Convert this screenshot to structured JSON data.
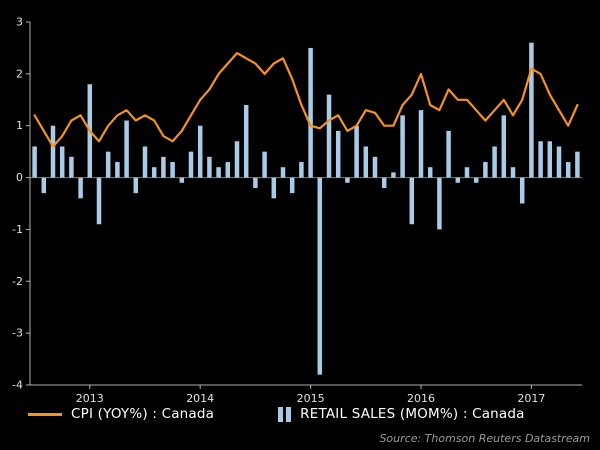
{
  "source_note": "Source: Thomson Reuters Datastream",
  "colors": {
    "background": "#000000",
    "cpi_line": "#F6921E",
    "retail_bar": "#A8CBE8",
    "axis": "#b0b0b0",
    "tick_label": "#e0e0e0",
    "zero_line": "#7a7a7a",
    "legend_text": "#ffffff",
    "source_text": "#9b9b9b"
  },
  "chart_data": {
    "type": "bar",
    "title": "",
    "xlabel": "",
    "ylabel": "",
    "ylim": [
      -4,
      3
    ],
    "yticks": [
      3,
      2,
      1,
      0,
      -1,
      -2,
      -3,
      -4
    ],
    "xticks": [
      "2013",
      "2014",
      "2015",
      "2016",
      "2017"
    ],
    "grid": false,
    "legend_position": "bottom",
    "x": [
      "2012-07",
      "2012-08",
      "2012-09",
      "2012-10",
      "2012-11",
      "2012-12",
      "2013-01",
      "2013-02",
      "2013-03",
      "2013-04",
      "2013-05",
      "2013-06",
      "2013-07",
      "2013-08",
      "2013-09",
      "2013-10",
      "2013-11",
      "2013-12",
      "2014-01",
      "2014-02",
      "2014-03",
      "2014-04",
      "2014-05",
      "2014-06",
      "2014-07",
      "2014-08",
      "2014-09",
      "2014-10",
      "2014-11",
      "2014-12",
      "2015-01",
      "2015-02",
      "2015-03",
      "2015-04",
      "2015-05",
      "2015-06",
      "2015-07",
      "2015-08",
      "2015-09",
      "2015-10",
      "2015-11",
      "2015-12",
      "2016-01",
      "2016-02",
      "2016-03",
      "2016-04",
      "2016-05",
      "2016-06",
      "2016-07",
      "2016-08",
      "2016-09",
      "2016-10",
      "2016-11",
      "2016-12",
      "2017-01",
      "2017-02",
      "2017-03",
      "2017-04",
      "2017-05",
      "2017-06"
    ],
    "series": [
      {
        "name": "CPI (YOY%) : Canada",
        "type": "line",
        "color": "#F6921E",
        "values": [
          1.2,
          0.9,
          0.6,
          0.8,
          1.1,
          1.2,
          0.9,
          0.7,
          1.0,
          1.2,
          1.3,
          1.1,
          1.2,
          1.1,
          0.8,
          0.7,
          0.9,
          1.2,
          1.5,
          1.7,
          2.0,
          2.2,
          2.4,
          2.3,
          2.2,
          2.0,
          2.2,
          2.3,
          1.9,
          1.4,
          1.0,
          0.95,
          1.1,
          1.2,
          0.9,
          1.0,
          1.3,
          1.25,
          1.0,
          1.0,
          1.4,
          1.6,
          2.0,
          1.4,
          1.3,
          1.7,
          1.5,
          1.5,
          1.3,
          1.1,
          1.3,
          1.5,
          1.2,
          1.5,
          2.1,
          2.0,
          1.6,
          1.3,
          1.0,
          1.4
        ]
      },
      {
        "name": "RETAIL SALES (MOM%) : Canada",
        "type": "bar",
        "color": "#A8CBE8",
        "values": [
          0.6,
          -0.3,
          1.0,
          0.6,
          0.4,
          -0.4,
          1.8,
          -0.9,
          0.5,
          0.3,
          1.1,
          -0.3,
          0.6,
          0.2,
          0.4,
          0.3,
          -0.1,
          0.5,
          1.0,
          0.4,
          0.2,
          0.3,
          0.7,
          1.4,
          -0.2,
          0.5,
          -0.4,
          0.2,
          -0.3,
          0.3,
          2.5,
          -3.8,
          1.6,
          0.9,
          -0.1,
          1.0,
          0.6,
          0.4,
          -0.2,
          0.1,
          1.2,
          -0.9,
          1.3,
          0.2,
          -1.0,
          0.9,
          -0.1,
          0.2,
          -0.1,
          0.3,
          0.6,
          1.2,
          0.2,
          -0.5,
          2.6,
          0.7,
          0.7,
          0.6,
          0.3,
          0.5
        ]
      }
    ]
  }
}
